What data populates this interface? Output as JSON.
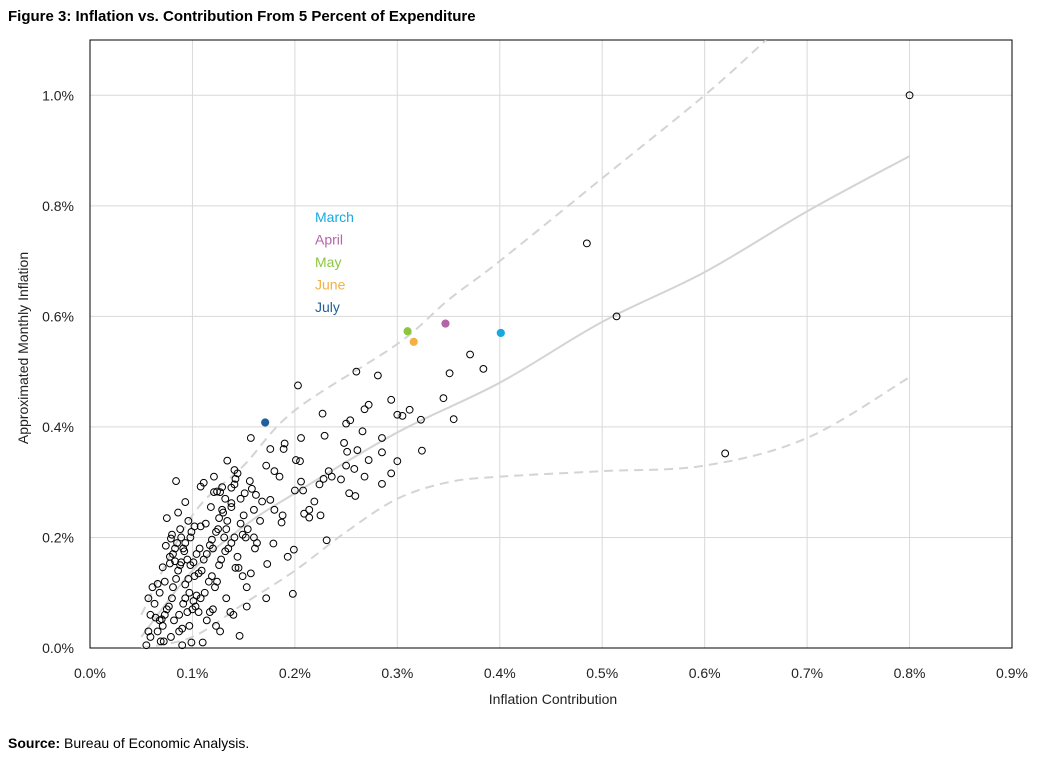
{
  "title": "Figure 3: Inflation vs. Contribution From 5 Percent of Expenditure",
  "source_label": "Source:",
  "source_text": "Bureau of Economic Analysis.",
  "chart_data": {
    "type": "scatter",
    "xlabel": "Inflation Contribution",
    "ylabel": "Approximated Monthly Inflation",
    "xlim": [
      0,
      0.9
    ],
    "ylim": [
      0,
      1.1
    ],
    "x_ticks": [
      0,
      0.1,
      0.2,
      0.3,
      0.4,
      0.5,
      0.6,
      0.7,
      0.8,
      0.9
    ],
    "x_tick_labels": [
      "0.0%",
      "0.1%",
      "0.2%",
      "0.3%",
      "0.4%",
      "0.5%",
      "0.6%",
      "0.7%",
      "0.8%",
      "0.9%"
    ],
    "y_ticks": [
      0,
      0.2,
      0.4,
      0.6,
      0.8,
      1.0
    ],
    "y_tick_labels": [
      "0.0%",
      "0.2%",
      "0.4%",
      "0.6%",
      "0.8%",
      "1.0%"
    ],
    "grid": true,
    "legend_position": "upper-left inside plot",
    "highlighted": [
      {
        "name": "March",
        "color": "#17a9e1",
        "x": 0.401,
        "y": 0.57
      },
      {
        "name": "April",
        "color": "#b565a7",
        "x": 0.347,
        "y": 0.587
      },
      {
        "name": "May",
        "color": "#8cc63f",
        "x": 0.31,
        "y": 0.573
      },
      {
        "name": "June",
        "color": "#f4b042",
        "x": 0.316,
        "y": 0.554
      },
      {
        "name": "July",
        "color": "#1f5f9c",
        "x": 0.171,
        "y": 0.408
      }
    ],
    "fit_line": {
      "x": [
        0.05,
        0.1,
        0.15,
        0.2,
        0.3,
        0.4,
        0.5,
        0.6,
        0.7,
        0.8
      ],
      "y": [
        0.02,
        0.14,
        0.22,
        0.28,
        0.39,
        0.48,
        0.59,
        0.68,
        0.79,
        0.89
      ]
    },
    "upper_band": {
      "x": [
        0.05,
        0.1,
        0.15,
        0.2,
        0.3,
        0.35,
        0.4,
        0.5,
        0.6,
        0.66
      ],
      "y": [
        0.06,
        0.24,
        0.33,
        0.43,
        0.55,
        0.63,
        0.7,
        0.85,
        1.0,
        1.1
      ]
    },
    "lower_band": {
      "x": [
        0.05,
        0.1,
        0.15,
        0.2,
        0.25,
        0.3,
        0.35,
        0.4,
        0.5,
        0.6,
        0.7,
        0.8
      ],
      "y": [
        0.0,
        0.02,
        0.08,
        0.14,
        0.21,
        0.27,
        0.3,
        0.31,
        0.32,
        0.33,
        0.38,
        0.49
      ]
    },
    "points": [
      [
        0.8,
        1.0
      ],
      [
        0.485,
        0.732
      ],
      [
        0.514,
        0.6
      ],
      [
        0.62,
        0.352
      ],
      [
        0.26,
        0.5
      ],
      [
        0.203,
        0.475
      ],
      [
        0.281,
        0.493
      ],
      [
        0.371,
        0.531
      ],
      [
        0.384,
        0.505
      ],
      [
        0.351,
        0.497
      ],
      [
        0.345,
        0.452
      ],
      [
        0.355,
        0.414
      ],
      [
        0.323,
        0.413
      ],
      [
        0.312,
        0.431
      ],
      [
        0.305,
        0.42
      ],
      [
        0.3,
        0.422
      ],
      [
        0.294,
        0.449
      ],
      [
        0.272,
        0.44
      ],
      [
        0.268,
        0.432
      ],
      [
        0.254,
        0.412
      ],
      [
        0.25,
        0.406
      ],
      [
        0.266,
        0.392
      ],
      [
        0.227,
        0.424
      ],
      [
        0.229,
        0.384
      ],
      [
        0.248,
        0.371
      ],
      [
        0.251,
        0.355
      ],
      [
        0.261,
        0.358
      ],
      [
        0.285,
        0.354
      ],
      [
        0.285,
        0.38
      ],
      [
        0.3,
        0.338
      ],
      [
        0.324,
        0.357
      ],
      [
        0.294,
        0.316
      ],
      [
        0.272,
        0.34
      ],
      [
        0.268,
        0.31
      ],
      [
        0.258,
        0.324
      ],
      [
        0.25,
        0.33
      ],
      [
        0.233,
        0.32
      ],
      [
        0.228,
        0.306
      ],
      [
        0.224,
        0.296
      ],
      [
        0.206,
        0.301
      ],
      [
        0.201,
        0.34
      ],
      [
        0.205,
        0.338
      ],
      [
        0.206,
        0.38
      ],
      [
        0.19,
        0.37
      ],
      [
        0.189,
        0.36
      ],
      [
        0.176,
        0.36
      ],
      [
        0.172,
        0.33
      ],
      [
        0.18,
        0.32
      ],
      [
        0.185,
        0.31
      ],
      [
        0.2,
        0.285
      ],
      [
        0.208,
        0.285
      ],
      [
        0.214,
        0.25
      ],
      [
        0.209,
        0.243
      ],
      [
        0.219,
        0.265
      ],
      [
        0.225,
        0.24
      ],
      [
        0.236,
        0.31
      ],
      [
        0.245,
        0.305
      ],
      [
        0.253,
        0.28
      ],
      [
        0.259,
        0.275
      ],
      [
        0.285,
        0.297
      ],
      [
        0.231,
        0.195
      ],
      [
        0.214,
        0.236
      ],
      [
        0.199,
        0.178
      ],
      [
        0.193,
        0.165
      ],
      [
        0.198,
        0.098
      ],
      [
        0.188,
        0.24
      ],
      [
        0.187,
        0.227
      ],
      [
        0.18,
        0.25
      ],
      [
        0.176,
        0.268
      ],
      [
        0.179,
        0.189
      ],
      [
        0.173,
        0.152
      ],
      [
        0.172,
        0.09
      ],
      [
        0.168,
        0.265
      ],
      [
        0.162,
        0.277
      ],
      [
        0.158,
        0.288
      ],
      [
        0.156,
        0.302
      ],
      [
        0.154,
        0.215
      ],
      [
        0.152,
        0.2
      ],
      [
        0.149,
        0.205
      ],
      [
        0.161,
        0.18
      ],
      [
        0.163,
        0.19
      ],
      [
        0.157,
        0.38
      ],
      [
        0.142,
        0.306
      ],
      [
        0.144,
        0.316
      ],
      [
        0.141,
        0.322
      ],
      [
        0.134,
        0.339
      ],
      [
        0.141,
        0.296
      ],
      [
        0.138,
        0.29
      ],
      [
        0.129,
        0.291
      ],
      [
        0.121,
        0.31
      ],
      [
        0.124,
        0.283
      ],
      [
        0.127,
        0.282
      ],
      [
        0.132,
        0.27
      ],
      [
        0.138,
        0.262
      ],
      [
        0.121,
        0.282
      ],
      [
        0.118,
        0.255
      ],
      [
        0.111,
        0.299
      ],
      [
        0.108,
        0.292
      ],
      [
        0.113,
        0.225
      ],
      [
        0.108,
        0.22
      ],
      [
        0.102,
        0.22
      ],
      [
        0.099,
        0.21
      ],
      [
        0.096,
        0.23
      ],
      [
        0.098,
        0.2
      ],
      [
        0.093,
        0.19
      ],
      [
        0.091,
        0.18
      ],
      [
        0.088,
        0.215
      ],
      [
        0.086,
        0.245
      ],
      [
        0.093,
        0.264
      ],
      [
        0.084,
        0.302
      ],
      [
        0.075,
        0.235
      ],
      [
        0.079,
        0.198
      ],
      [
        0.081,
        0.17
      ],
      [
        0.083,
        0.157
      ],
      [
        0.088,
        0.15
      ],
      [
        0.078,
        0.153
      ],
      [
        0.071,
        0.146
      ],
      [
        0.073,
        0.12
      ],
      [
        0.066,
        0.116
      ],
      [
        0.068,
        0.1
      ],
      [
        0.061,
        0.11
      ],
      [
        0.057,
        0.09
      ],
      [
        0.063,
        0.08
      ],
      [
        0.059,
        0.06
      ],
      [
        0.064,
        0.055
      ],
      [
        0.068,
        0.05
      ],
      [
        0.071,
        0.04
      ],
      [
        0.066,
        0.03
      ],
      [
        0.059,
        0.02
      ],
      [
        0.057,
        0.03
      ],
      [
        0.055,
        0.005
      ],
      [
        0.072,
        0.012
      ],
      [
        0.079,
        0.02
      ],
      [
        0.082,
        0.05
      ],
      [
        0.087,
        0.06
      ],
      [
        0.091,
        0.08
      ],
      [
        0.093,
        0.09
      ],
      [
        0.097,
        0.1
      ],
      [
        0.101,
        0.085
      ],
      [
        0.104,
        0.095
      ],
      [
        0.108,
        0.09
      ],
      [
        0.112,
        0.1
      ],
      [
        0.116,
        0.12
      ],
      [
        0.119,
        0.13
      ],
      [
        0.122,
        0.11
      ],
      [
        0.124,
        0.12
      ],
      [
        0.126,
        0.15
      ],
      [
        0.128,
        0.16
      ],
      [
        0.132,
        0.175
      ],
      [
        0.135,
        0.18
      ],
      [
        0.138,
        0.19
      ],
      [
        0.141,
        0.2
      ],
      [
        0.142,
        0.145
      ],
      [
        0.144,
        0.165
      ],
      [
        0.147,
        0.225
      ],
      [
        0.15,
        0.24
      ],
      [
        0.133,
        0.215
      ],
      [
        0.131,
        0.2
      ],
      [
        0.129,
        0.25
      ],
      [
        0.126,
        0.235
      ],
      [
        0.123,
        0.21
      ],
      [
        0.119,
        0.196
      ],
      [
        0.117,
        0.186
      ],
      [
        0.114,
        0.17
      ],
      [
        0.111,
        0.16
      ],
      [
        0.107,
        0.18
      ],
      [
        0.104,
        0.17
      ],
      [
        0.101,
        0.155
      ],
      [
        0.098,
        0.15
      ],
      [
        0.095,
        0.16
      ],
      [
        0.092,
        0.175
      ],
      [
        0.089,
        0.155
      ],
      [
        0.086,
        0.14
      ],
      [
        0.084,
        0.125
      ],
      [
        0.081,
        0.11
      ],
      [
        0.08,
        0.09
      ],
      [
        0.077,
        0.075
      ],
      [
        0.075,
        0.07
      ],
      [
        0.073,
        0.06
      ],
      [
        0.07,
        0.052
      ],
      [
        0.069,
        0.012
      ],
      [
        0.087,
        0.03
      ],
      [
        0.09,
        0.035
      ],
      [
        0.095,
        0.065
      ],
      [
        0.1,
        0.07
      ],
      [
        0.103,
        0.075
      ],
      [
        0.106,
        0.065
      ],
      [
        0.11,
        0.01
      ],
      [
        0.114,
        0.05
      ],
      [
        0.117,
        0.065
      ],
      [
        0.12,
        0.07
      ],
      [
        0.123,
        0.04
      ],
      [
        0.127,
        0.03
      ],
      [
        0.133,
        0.09
      ],
      [
        0.137,
        0.065
      ],
      [
        0.14,
        0.06
      ],
      [
        0.146,
        0.022
      ],
      [
        0.153,
        0.11
      ],
      [
        0.157,
        0.135
      ],
      [
        0.149,
        0.13
      ],
      [
        0.145,
        0.145
      ],
      [
        0.153,
        0.075
      ],
      [
        0.097,
        0.04
      ],
      [
        0.09,
        0.005
      ],
      [
        0.099,
        0.01
      ],
      [
        0.093,
        0.115
      ],
      [
        0.096,
        0.125
      ],
      [
        0.102,
        0.13
      ],
      [
        0.106,
        0.135
      ],
      [
        0.109,
        0.14
      ],
      [
        0.083,
        0.18
      ],
      [
        0.078,
        0.165
      ],
      [
        0.074,
        0.185
      ],
      [
        0.08,
        0.205
      ],
      [
        0.085,
        0.19
      ],
      [
        0.089,
        0.2
      ],
      [
        0.12,
        0.18
      ],
      [
        0.125,
        0.215
      ],
      [
        0.13,
        0.245
      ],
      [
        0.147,
        0.27
      ],
      [
        0.16,
        0.25
      ],
      [
        0.166,
        0.23
      ],
      [
        0.134,
        0.23
      ],
      [
        0.138,
        0.255
      ],
      [
        0.151,
        0.28
      ],
      [
        0.16,
        0.2
      ]
    ]
  }
}
